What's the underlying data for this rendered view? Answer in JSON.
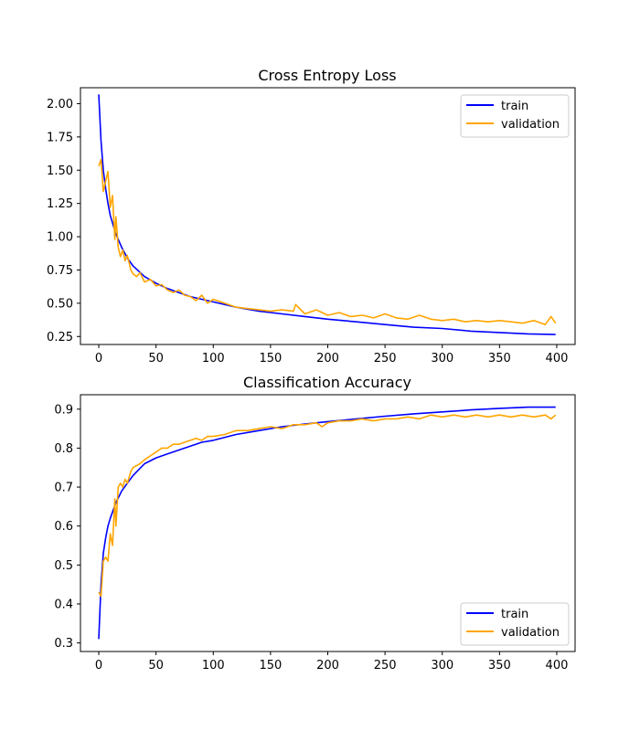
{
  "chart_data": [
    {
      "type": "line",
      "title": "Cross Entropy Loss",
      "xlabel": "",
      "ylabel": "",
      "xlim": [
        -16,
        416
      ],
      "ylim": [
        0.19,
        2.12
      ],
      "xticks": [
        0,
        50,
        100,
        150,
        200,
        250,
        300,
        350,
        400
      ],
      "yticks": [
        0.25,
        0.5,
        0.75,
        1.0,
        1.25,
        1.5,
        1.75,
        2.0
      ],
      "ytick_labels": [
        "0.25",
        "0.50",
        "0.75",
        "1.00",
        "1.25",
        "1.50",
        "1.75",
        "2.00"
      ],
      "xtick_labels": [
        "0",
        "50",
        "100",
        "150",
        "200",
        "250",
        "300",
        "350",
        "400"
      ],
      "legend_position": "upper-right",
      "grid": false,
      "series": [
        {
          "name": "train",
          "color": "#0000ff",
          "x": [
            0,
            2,
            4,
            6,
            8,
            10,
            15,
            20,
            25,
            30,
            40,
            50,
            60,
            70,
            80,
            90,
            100,
            120,
            140,
            160,
            180,
            200,
            225,
            250,
            275,
            300,
            325,
            350,
            375,
            399
          ],
          "y": [
            2.07,
            1.72,
            1.5,
            1.36,
            1.25,
            1.16,
            1.02,
            0.92,
            0.84,
            0.78,
            0.7,
            0.65,
            0.61,
            0.58,
            0.55,
            0.53,
            0.51,
            0.47,
            0.44,
            0.42,
            0.4,
            0.38,
            0.36,
            0.34,
            0.32,
            0.31,
            0.29,
            0.28,
            0.27,
            0.265
          ]
        },
        {
          "name": "validation",
          "color": "#ffa500",
          "x": [
            0,
            2,
            4,
            6,
            8,
            10,
            12,
            14,
            15,
            17,
            19,
            21,
            23,
            25,
            28,
            30,
            33,
            36,
            40,
            45,
            50,
            55,
            60,
            65,
            70,
            75,
            80,
            85,
            90,
            95,
            100,
            110,
            120,
            130,
            140,
            150,
            160,
            170,
            172,
            180,
            190,
            200,
            210,
            220,
            230,
            240,
            250,
            260,
            270,
            280,
            290,
            300,
            310,
            320,
            330,
            340,
            350,
            360,
            370,
            380,
            390,
            395,
            399
          ],
          "y": [
            1.53,
            1.58,
            1.34,
            1.42,
            1.49,
            1.22,
            1.31,
            0.98,
            1.15,
            0.92,
            0.85,
            0.9,
            0.82,
            0.86,
            0.75,
            0.72,
            0.7,
            0.73,
            0.66,
            0.68,
            0.63,
            0.64,
            0.6,
            0.58,
            0.6,
            0.56,
            0.55,
            0.52,
            0.56,
            0.5,
            0.53,
            0.5,
            0.47,
            0.46,
            0.45,
            0.44,
            0.45,
            0.44,
            0.49,
            0.42,
            0.45,
            0.41,
            0.43,
            0.4,
            0.41,
            0.39,
            0.42,
            0.39,
            0.38,
            0.41,
            0.38,
            0.37,
            0.38,
            0.36,
            0.37,
            0.36,
            0.37,
            0.36,
            0.35,
            0.37,
            0.34,
            0.4,
            0.35
          ]
        }
      ]
    },
    {
      "type": "line",
      "title": "Classification Accuracy",
      "xlabel": "",
      "ylabel": "",
      "xlim": [
        -16,
        416
      ],
      "ylim": [
        0.278,
        0.937
      ],
      "xticks": [
        0,
        50,
        100,
        150,
        200,
        250,
        300,
        350,
        400
      ],
      "yticks": [
        0.3,
        0.4,
        0.5,
        0.6,
        0.7,
        0.8,
        0.9
      ],
      "ytick_labels": [
        "0.3",
        "0.4",
        "0.5",
        "0.6",
        "0.7",
        "0.8",
        "0.9"
      ],
      "xtick_labels": [
        "0",
        "50",
        "100",
        "150",
        "200",
        "250",
        "300",
        "350",
        "400"
      ],
      "legend_position": "lower-right",
      "grid": false,
      "series": [
        {
          "name": "train",
          "color": "#0000ff",
          "x": [
            0,
            2,
            4,
            6,
            8,
            10,
            15,
            20,
            25,
            30,
            40,
            50,
            60,
            70,
            80,
            90,
            100,
            120,
            140,
            160,
            180,
            200,
            225,
            250,
            275,
            300,
            325,
            350,
            375,
            399
          ],
          "y": [
            0.31,
            0.45,
            0.53,
            0.57,
            0.6,
            0.62,
            0.66,
            0.69,
            0.71,
            0.73,
            0.76,
            0.775,
            0.785,
            0.795,
            0.805,
            0.815,
            0.82,
            0.835,
            0.845,
            0.855,
            0.862,
            0.868,
            0.875,
            0.882,
            0.888,
            0.893,
            0.898,
            0.902,
            0.905,
            0.905
          ]
        },
        {
          "name": "validation",
          "color": "#ffa500",
          "x": [
            0,
            2,
            4,
            6,
            8,
            10,
            12,
            14,
            15,
            17,
            19,
            21,
            23,
            25,
            28,
            30,
            33,
            36,
            40,
            45,
            50,
            55,
            60,
            65,
            70,
            75,
            80,
            85,
            90,
            95,
            100,
            110,
            120,
            130,
            140,
            150,
            160,
            170,
            180,
            190,
            195,
            200,
            210,
            220,
            230,
            240,
            250,
            260,
            270,
            280,
            290,
            300,
            310,
            320,
            330,
            340,
            350,
            360,
            370,
            380,
            390,
            395,
            399
          ],
          "y": [
            0.43,
            0.42,
            0.51,
            0.52,
            0.51,
            0.58,
            0.55,
            0.67,
            0.6,
            0.7,
            0.71,
            0.7,
            0.72,
            0.71,
            0.74,
            0.75,
            0.755,
            0.76,
            0.77,
            0.78,
            0.79,
            0.8,
            0.8,
            0.81,
            0.81,
            0.815,
            0.82,
            0.825,
            0.82,
            0.83,
            0.83,
            0.835,
            0.845,
            0.845,
            0.85,
            0.855,
            0.85,
            0.86,
            0.86,
            0.865,
            0.855,
            0.865,
            0.87,
            0.87,
            0.875,
            0.87,
            0.875,
            0.875,
            0.88,
            0.875,
            0.885,
            0.88,
            0.885,
            0.88,
            0.885,
            0.88,
            0.885,
            0.88,
            0.885,
            0.88,
            0.885,
            0.875,
            0.885
          ]
        }
      ]
    }
  ]
}
